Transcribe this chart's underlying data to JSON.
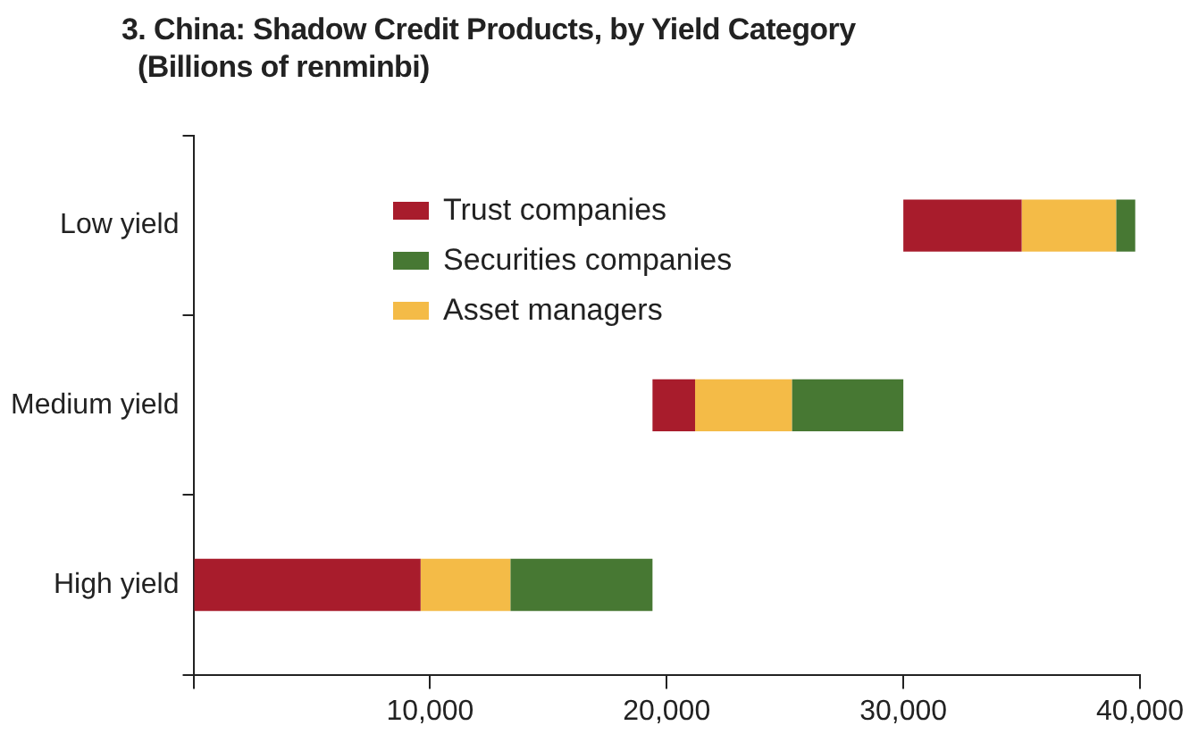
{
  "chart_data": {
    "type": "bar",
    "orientation": "horizontal",
    "title": "3. China: Shadow Credit Products, by Yield Category",
    "subtitle": "(Billions of renminbi)",
    "categories": [
      "Low yield",
      "Medium yield",
      "High yield"
    ],
    "series": [
      {
        "name": "Trust companies",
        "color": "#a81c2c",
        "base": [
          30000,
          19400,
          0
        ],
        "values": [
          5000,
          1800,
          9600
        ]
      },
      {
        "name": "Securities companies",
        "color": "#477833",
        "base": [
          39000,
          25300,
          13400
        ],
        "values": [
          800,
          4700,
          6000
        ]
      },
      {
        "name": "Asset managers",
        "color": "#f4bb47",
        "base": [
          35000,
          21200,
          9600
        ],
        "values": [
          4000,
          4100,
          3800
        ]
      }
    ],
    "xlim": [
      0,
      40000
    ],
    "xticks": [
      {
        "value": 0,
        "label": null
      },
      {
        "value": 10000,
        "label": "10,000"
      },
      {
        "value": 20000,
        "label": "20,000"
      },
      {
        "value": 30000,
        "label": "30,000"
      },
      {
        "value": 40000,
        "label": "40,000"
      }
    ],
    "grid": false,
    "legend": "top left"
  }
}
